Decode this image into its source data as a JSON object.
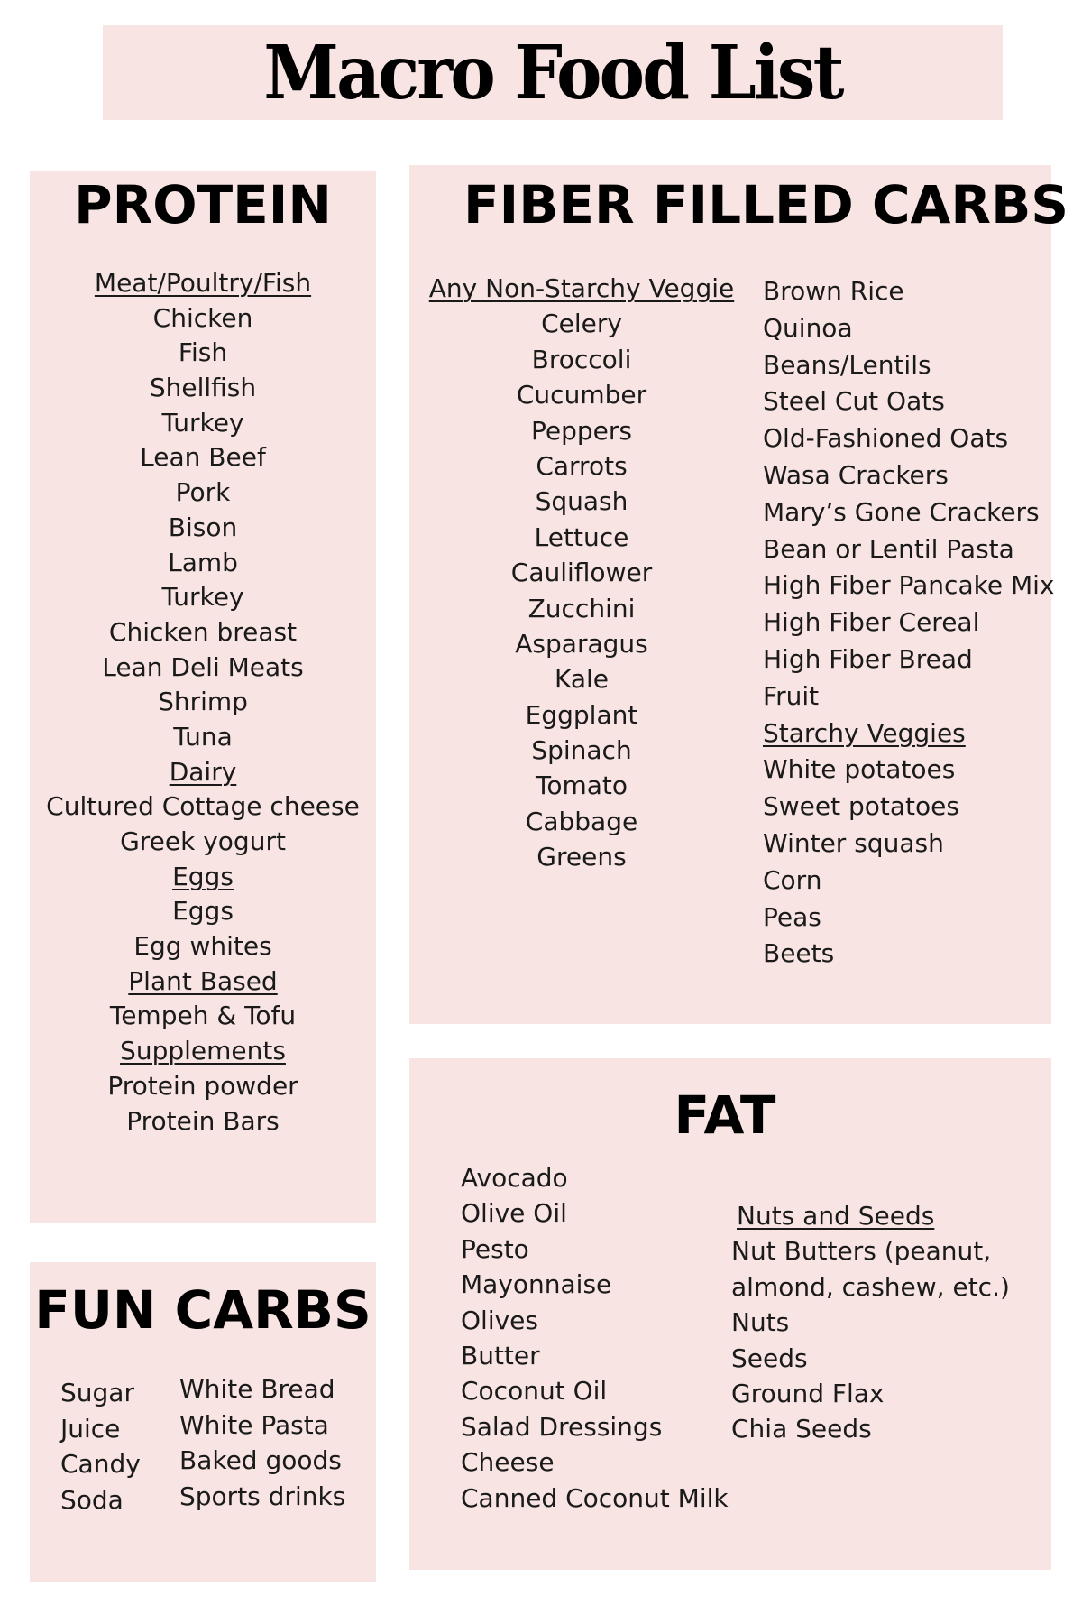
{
  "title": "Macro Food List",
  "colors": {
    "panel": "#f8e4e2",
    "text": "#1a1a1a"
  },
  "protein": {
    "heading": "PROTEIN",
    "items": [
      {
        "text": "Meat/Poultry/Fish",
        "subheading": true
      },
      {
        "text": "Chicken"
      },
      {
        "text": "Fish"
      },
      {
        "text": "Shellfish"
      },
      {
        "text": "Turkey"
      },
      {
        "text": "Lean Beef"
      },
      {
        "text": "Pork"
      },
      {
        "text": "Bison"
      },
      {
        "text": "Lamb"
      },
      {
        "text": "Turkey"
      },
      {
        "text": "Chicken breast"
      },
      {
        "text": "Lean Deli Meats"
      },
      {
        "text": "Shrimp"
      },
      {
        "text": "Tuna"
      },
      {
        "text": "Dairy",
        "subheading": true
      },
      {
        "text": "Cultured Cottage cheese"
      },
      {
        "text": "Greek yogurt"
      },
      {
        "text": "Eggs",
        "subheading": true
      },
      {
        "text": "Eggs"
      },
      {
        "text": "Egg whites"
      },
      {
        "text": "Plant Based",
        "subheading": true
      },
      {
        "text": "Tempeh & Tofu"
      },
      {
        "text": "Supplements",
        "subheading": true
      },
      {
        "text": "Protein powder"
      },
      {
        "text": "Protein Bars"
      }
    ]
  },
  "fiber_carbs": {
    "heading": "FIBER FILLED CARBS",
    "left": [
      {
        "text": "Any Non-Starchy Veggie",
        "subheading": true
      },
      {
        "text": "Celery"
      },
      {
        "text": "Broccoli"
      },
      {
        "text": "Cucumber"
      },
      {
        "text": "Peppers"
      },
      {
        "text": "Carrots"
      },
      {
        "text": "Squash"
      },
      {
        "text": "Lettuce"
      },
      {
        "text": "Cauliflower"
      },
      {
        "text": "Zucchini"
      },
      {
        "text": "Asparagus"
      },
      {
        "text": "Kale"
      },
      {
        "text": "Eggplant"
      },
      {
        "text": "Spinach"
      },
      {
        "text": "Tomato"
      },
      {
        "text": "Cabbage"
      },
      {
        "text": "Greens"
      }
    ],
    "right": [
      {
        "text": "Brown Rice"
      },
      {
        "text": "Quinoa"
      },
      {
        "text": "Beans/Lentils"
      },
      {
        "text": "Steel Cut Oats"
      },
      {
        "text": "Old-Fashioned Oats"
      },
      {
        "text": "Wasa Crackers"
      },
      {
        "text": "Mary’s Gone Crackers"
      },
      {
        "text": "Bean or Lentil Pasta"
      },
      {
        "text": "High Fiber Pancake Mix"
      },
      {
        "text": "High Fiber Cereal"
      },
      {
        "text": "High Fiber Bread"
      },
      {
        "text": "Fruit"
      },
      {
        "text": "Starchy Veggies",
        "subheading": true
      },
      {
        "text": "White potatoes"
      },
      {
        "text": "Sweet potatoes"
      },
      {
        "text": "Winter squash"
      },
      {
        "text": "Corn"
      },
      {
        "text": "Peas"
      },
      {
        "text": "Beets"
      }
    ]
  },
  "fun_carbs": {
    "heading": "FUN CARBS",
    "left": [
      {
        "text": "Sugar"
      },
      {
        "text": "Juice"
      },
      {
        "text": "Candy"
      },
      {
        "text": "Soda"
      }
    ],
    "right": [
      {
        "text": "White Bread"
      },
      {
        "text": "White Pasta"
      },
      {
        "text": "Baked goods"
      },
      {
        "text": "Sports drinks"
      }
    ]
  },
  "fat": {
    "heading": "FAT",
    "left": [
      {
        "text": "Avocado"
      },
      {
        "text": "Olive Oil"
      },
      {
        "text": "Pesto"
      },
      {
        "text": "Mayonnaise"
      },
      {
        "text": "Olives"
      },
      {
        "text": "Butter"
      },
      {
        "text": "Coconut Oil"
      },
      {
        "text": "Salad Dressings"
      },
      {
        "text": "Cheese"
      },
      {
        "text": "Canned Coconut Milk"
      }
    ],
    "right": [
      {
        "text": "Nuts and Seeds",
        "subheading": true
      },
      {
        "text": "Nut Butters (peanut,"
      },
      {
        "text": "almond, cashew, etc.)"
      },
      {
        "text": "Nuts"
      },
      {
        "text": "Seeds"
      },
      {
        "text": "Ground Flax"
      },
      {
        "text": "Chia Seeds"
      }
    ]
  }
}
